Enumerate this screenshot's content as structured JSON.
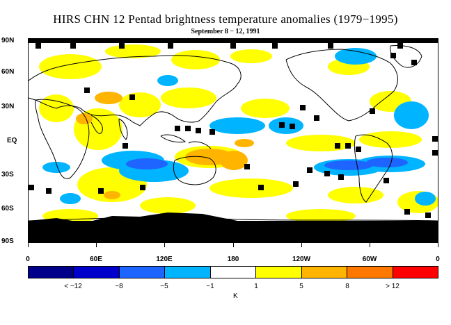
{
  "title": "HIRS CHN 12 Pentad brightness temperature anomalies (1979−1995)",
  "subtitle": "September 8 − 12, 1991",
  "lat_labels": [
    "90N",
    "60N",
    "30N",
    "EQ",
    "30S",
    "60S",
    "90S"
  ],
  "lon_labels": [
    "0",
    "60E",
    "120E",
    "180",
    "120W",
    "60W",
    "0"
  ],
  "colorbar": {
    "labels": [
      "< −12",
      "−8",
      "−5",
      "−1",
      "1",
      "5",
      "8",
      "> 12"
    ],
    "colors": [
      "#00008b",
      "#0000cd",
      "#1e64ff",
      "#00b4ff",
      "#ffffff",
      "#ffff00",
      "#ffb400",
      "#ff7800",
      "#ff0000"
    ],
    "unit": "K"
  },
  "legend_colors": {
    "missing": "#000000",
    "land_outline": "#000000"
  }
}
